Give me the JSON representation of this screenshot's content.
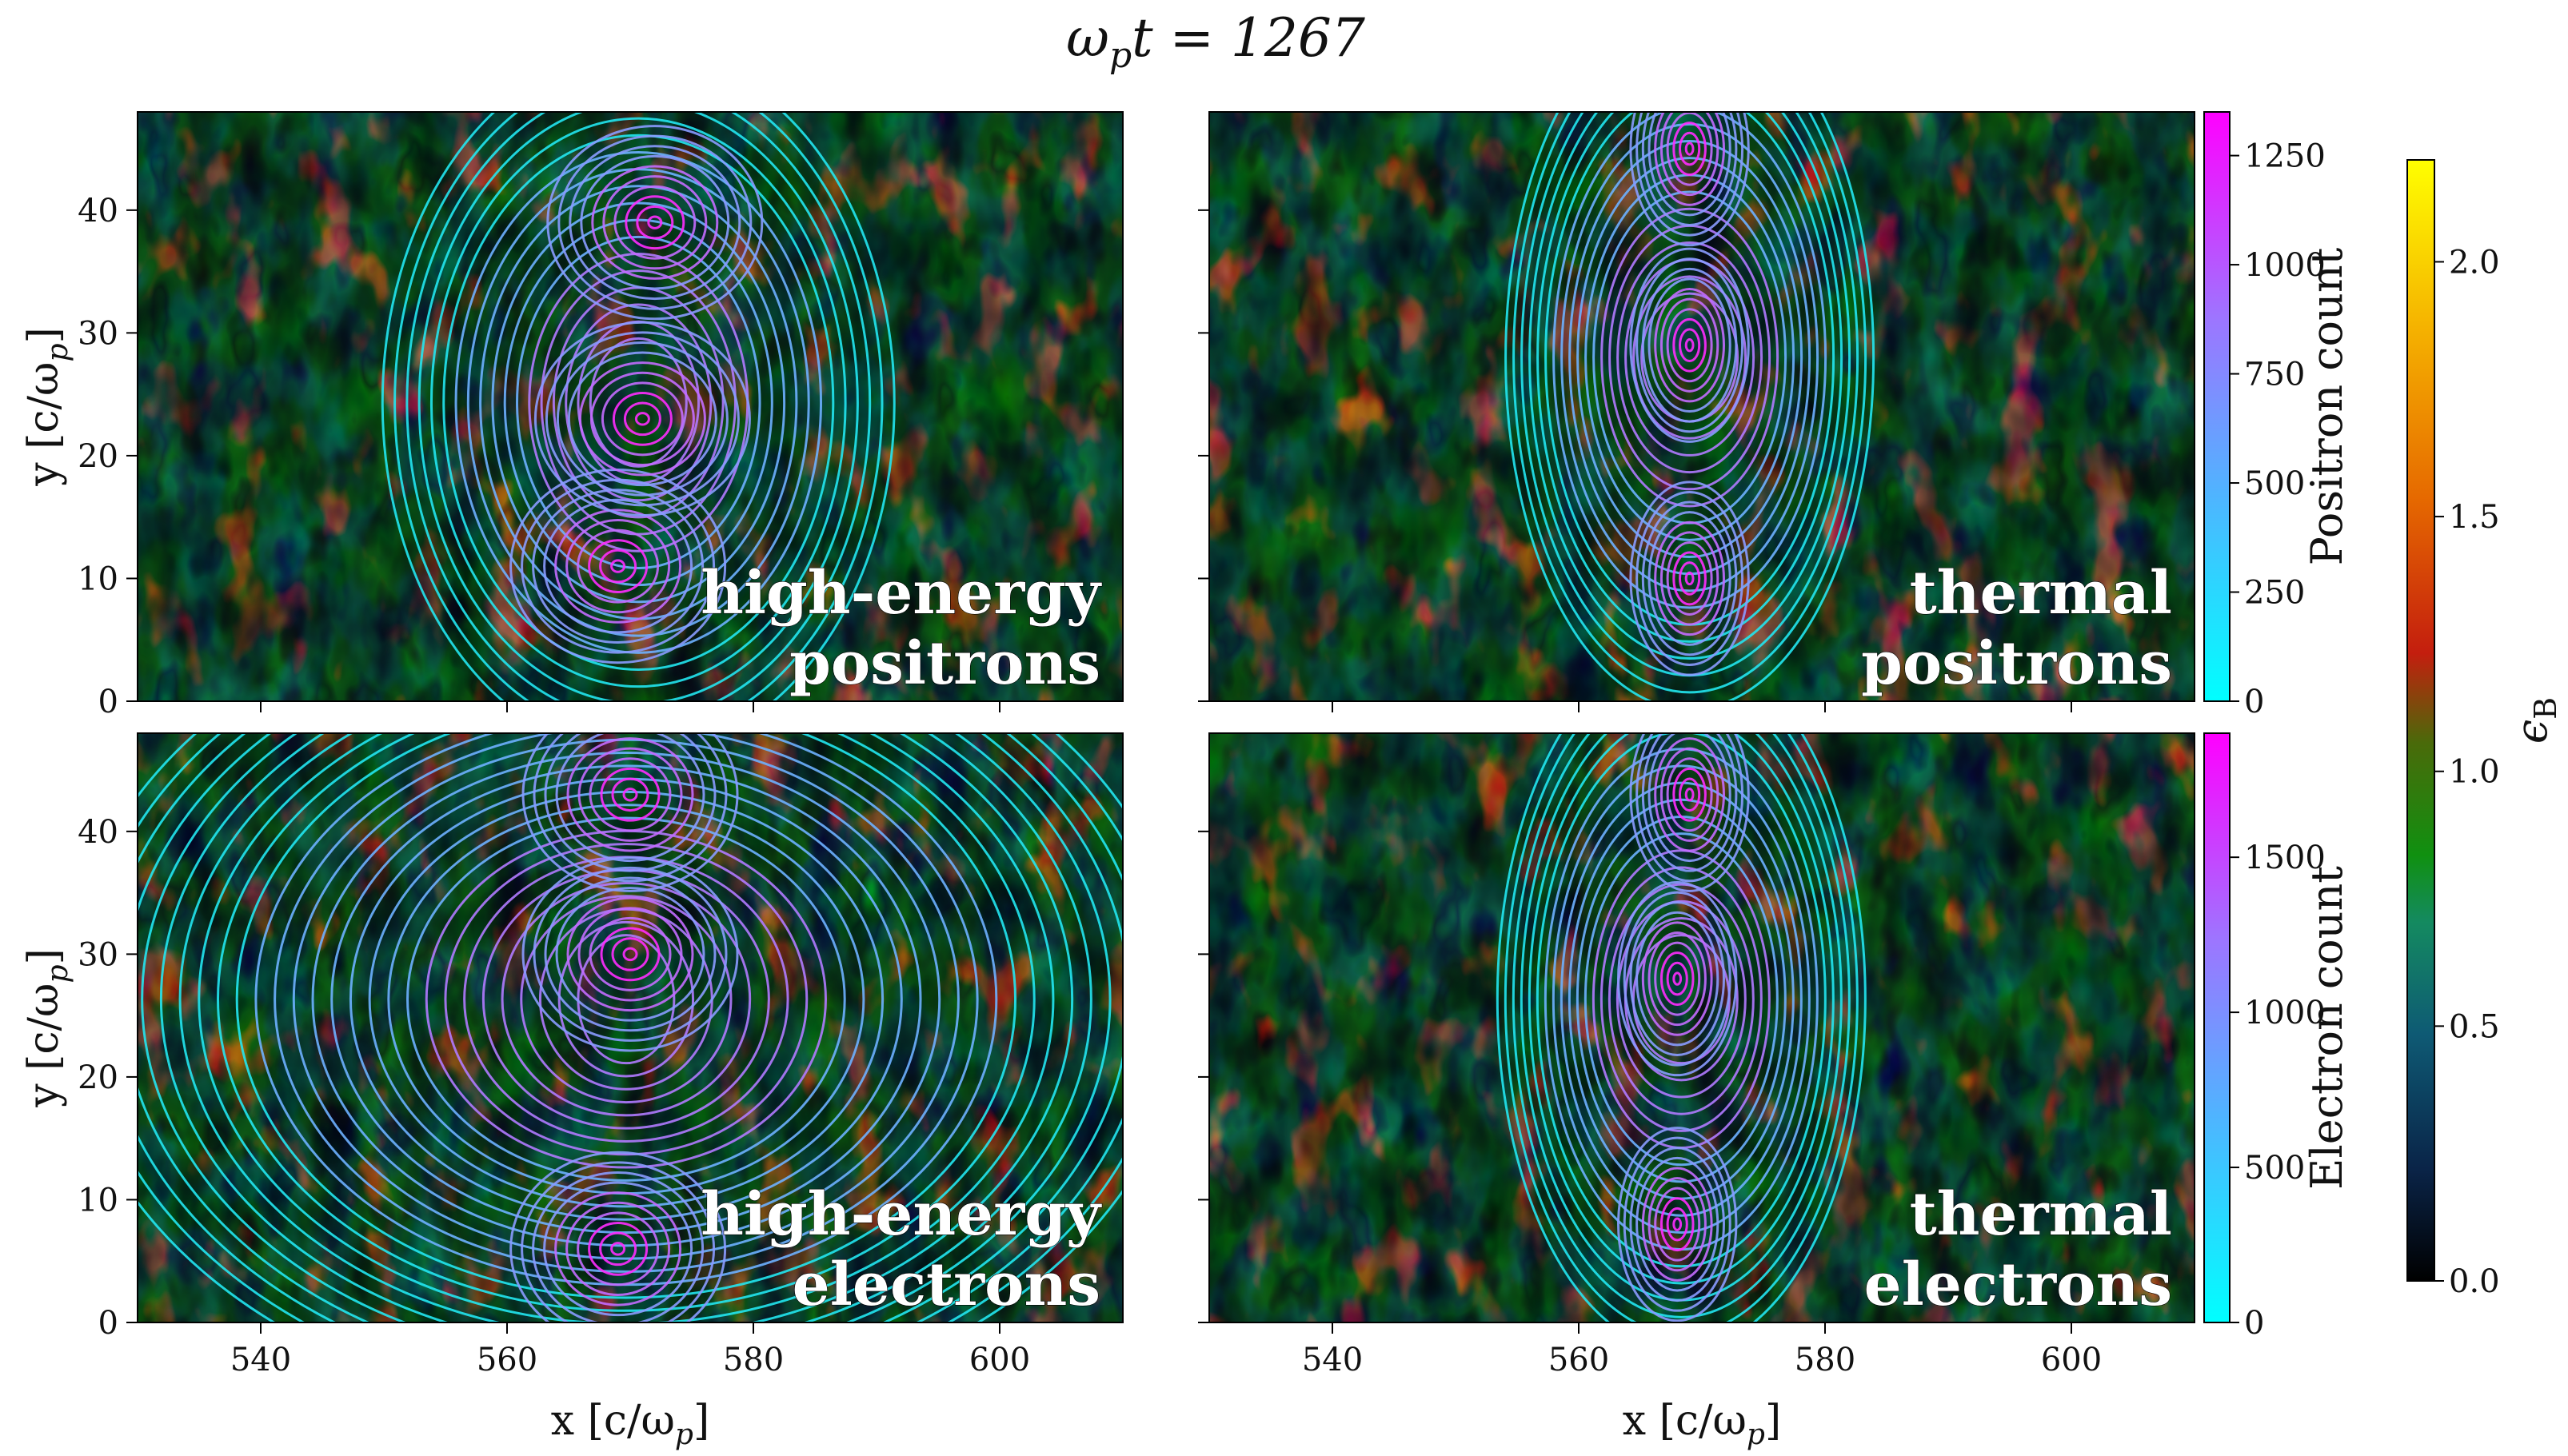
{
  "figure": {
    "title": "ω_p t = 1267",
    "title_main": "ω",
    "title_sub": "p",
    "title_rest": "t = 1267"
  },
  "chart_data": [
    {
      "type": "heatmap",
      "panel": "top-left",
      "label_lines": [
        "high-energy",
        "positrons"
      ],
      "xlabel": "",
      "ylabel": "y [c/ω_p]",
      "ylabel_main": "y [c/ω",
      "ylabel_sub": "p",
      "ylabel_end": "]",
      "xlim": [
        530,
        610
      ],
      "ylim": [
        0,
        48
      ],
      "xticks": [
        540,
        560,
        580,
        600
      ],
      "yticks": [
        0,
        10,
        20,
        30,
        40
      ],
      "overlay": "contours",
      "contour_peaks": [
        {
          "x": 569,
          "y": 11
        },
        {
          "x": 571,
          "y": 23
        },
        {
          "x": 572,
          "y": 39
        }
      ]
    },
    {
      "type": "heatmap",
      "panel": "top-right",
      "label_lines": [
        "thermal",
        "positrons"
      ],
      "xlabel": "",
      "ylabel": "",
      "xlim": [
        530,
        610
      ],
      "ylim": [
        0,
        48
      ],
      "xticks": [
        540,
        560,
        580,
        600
      ],
      "yticks": [
        0,
        10,
        20,
        30,
        40
      ],
      "overlay": "contours",
      "contour_peaks": [
        {
          "x": 569,
          "y": 10
        },
        {
          "x": 569,
          "y": 29
        },
        {
          "x": 569,
          "y": 45
        }
      ]
    },
    {
      "type": "heatmap",
      "panel": "bottom-left",
      "label_lines": [
        "high-energy",
        "electrons"
      ],
      "xlabel": "x [c/ω_p]",
      "xlabel_main": "x [c/ω",
      "xlabel_sub": "p",
      "xlabel_end": "]",
      "ylabel": "y [c/ω_p]",
      "ylabel_main": "y [c/ω",
      "ylabel_sub": "p",
      "ylabel_end": "]",
      "xlim": [
        530,
        610
      ],
      "ylim": [
        0,
        48
      ],
      "xticks": [
        540,
        560,
        580,
        600
      ],
      "yticks": [
        0,
        10,
        20,
        30,
        40
      ],
      "overlay": "contours",
      "contour_peaks": [
        {
          "x": 570,
          "y": 30
        },
        {
          "x": 570,
          "y": 43
        },
        {
          "x": 569,
          "y": 6
        }
      ]
    },
    {
      "type": "heatmap",
      "panel": "bottom-right",
      "label_lines": [
        "thermal",
        "electrons"
      ],
      "xlabel": "x [c/ω_p]",
      "xlabel_main": "x [c/ω",
      "xlabel_sub": "p",
      "xlabel_end": "]",
      "ylabel": "",
      "xlim": [
        530,
        610
      ],
      "ylim": [
        0,
        48
      ],
      "xticks": [
        540,
        560,
        580,
        600
      ],
      "yticks": [
        0,
        10,
        20,
        30,
        40
      ],
      "overlay": "contours",
      "contour_peaks": [
        {
          "x": 568,
          "y": 8
        },
        {
          "x": 568,
          "y": 28
        },
        {
          "x": 569,
          "y": 43
        }
      ]
    }
  ],
  "colorbars": {
    "positron": {
      "label": "Positron count",
      "range": [
        0,
        1350
      ],
      "ticks": [
        0,
        250,
        500,
        750,
        1000,
        1250
      ],
      "colors": [
        "#00ffff",
        "#ff00ff"
      ]
    },
    "electron": {
      "label": "Electron count",
      "range": [
        0,
        1900
      ],
      "ticks": [
        0,
        500,
        1000,
        1500
      ],
      "colors": [
        "#00ffff",
        "#ff00ff"
      ]
    },
    "epsilon_b": {
      "label_main": "ϵ",
      "label_sub": "B",
      "range": [
        0,
        2.2
      ],
      "ticks": [
        0.0,
        0.5,
        1.0,
        1.5,
        2.0
      ],
      "tick_labels": [
        "0.0",
        "0.5",
        "1.0",
        "1.5",
        "2.0"
      ],
      "colors": [
        "#000000",
        "#0a2c50",
        "#0e6a80",
        "#1a9e4a",
        "#118a11",
        "#c8370f",
        "#e96a00",
        "#f6b100",
        "#ffff00"
      ]
    }
  }
}
